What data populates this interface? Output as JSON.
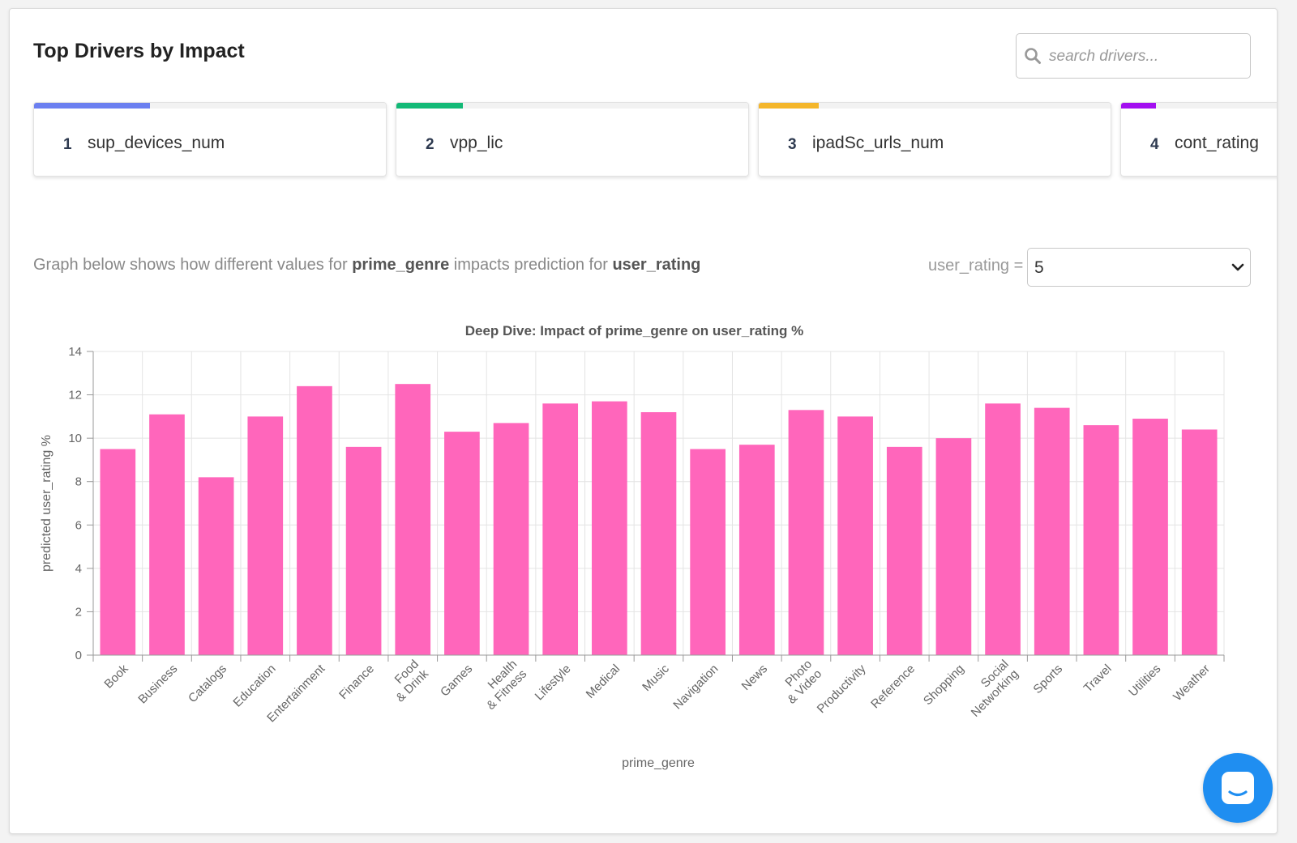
{
  "header": {
    "title": "Top Drivers by Impact",
    "search_placeholder": "search drivers..."
  },
  "drivers": [
    {
      "rank": "1",
      "name": "sup_devices_num",
      "impact": 0.33,
      "color": "#6b7ff0"
    },
    {
      "rank": "2",
      "name": "vpp_lic",
      "impact": 0.19,
      "color": "#13b977"
    },
    {
      "rank": "3",
      "name": "ipadSc_urls_num",
      "impact": 0.17,
      "color": "#f4b62b"
    },
    {
      "rank": "4",
      "name": "cont_rating",
      "impact": 0.1,
      "color": "#a30ff0"
    }
  ],
  "caption": {
    "prefix": "Graph below shows how different values for ",
    "feature": "prime_genre",
    "middle": " impacts prediction for ",
    "target": "user_rating"
  },
  "selector": {
    "label": "user_rating =",
    "value": "5"
  },
  "chart_data": {
    "type": "bar",
    "title": "Deep Dive: Impact of prime_genre on user_rating %",
    "xlabel": "prime_genre",
    "ylabel": "predicted user_rating %",
    "ylim": [
      0,
      14
    ],
    "yticks": [
      0,
      2,
      4,
      6,
      8,
      10,
      12,
      14
    ],
    "grid": true,
    "bar_color": "#ff66bb",
    "categories": [
      "Book",
      "Business",
      "Catalogs",
      "Education",
      "Entertainment",
      "Finance",
      "Food\n& Drink",
      "Games",
      "Health\n& Fitness",
      "Lifestyle",
      "Medical",
      "Music",
      "Navigation",
      "News",
      "Photo\n& Video",
      "Productivity",
      "Reference",
      "Shopping",
      "Social\nNetworking",
      "Sports",
      "Travel",
      "Utilities",
      "Weather"
    ],
    "values": [
      9.5,
      11.1,
      8.2,
      11.0,
      12.4,
      9.6,
      12.5,
      10.3,
      10.7,
      11.6,
      11.7,
      11.2,
      9.5,
      9.7,
      11.3,
      11.0,
      9.6,
      10.0,
      11.6,
      11.4,
      10.6,
      10.9,
      10.4
    ]
  },
  "chat_button": {
    "icon": "chat-icon",
    "color": "#1f8ef1"
  }
}
